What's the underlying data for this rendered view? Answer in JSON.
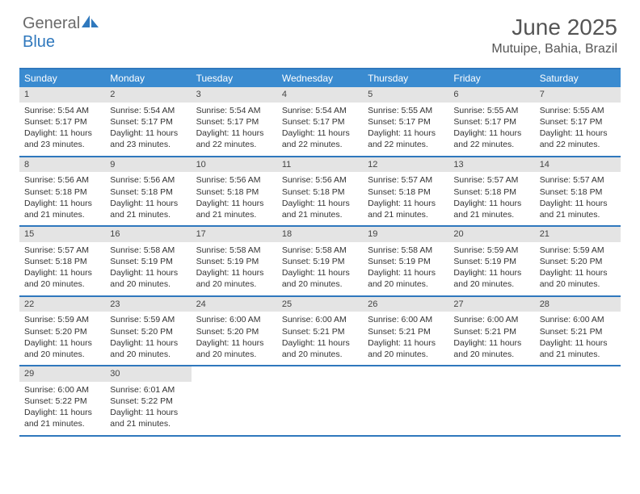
{
  "logo": {
    "part1": "General",
    "part2": "Blue"
  },
  "title": "June 2025",
  "location": "Mutuipe, Bahia, Brazil",
  "colors": {
    "accent": "#3a8bd0",
    "rule": "#2f78bd",
    "daynum_bg": "#e4e4e4",
    "text": "#333333",
    "header_text": "#555555",
    "background": "#ffffff"
  },
  "fonts": {
    "title_size": 28,
    "location_size": 16,
    "dow_size": 12,
    "cell_size": 10.5
  },
  "days_of_week": [
    "Sunday",
    "Monday",
    "Tuesday",
    "Wednesday",
    "Thursday",
    "Friday",
    "Saturday"
  ],
  "weeks": [
    [
      {
        "n": "1",
        "sunrise": "Sunrise: 5:54 AM",
        "sunset": "Sunset: 5:17 PM",
        "daylight": "Daylight: 11 hours and 23 minutes."
      },
      {
        "n": "2",
        "sunrise": "Sunrise: 5:54 AM",
        "sunset": "Sunset: 5:17 PM",
        "daylight": "Daylight: 11 hours and 23 minutes."
      },
      {
        "n": "3",
        "sunrise": "Sunrise: 5:54 AM",
        "sunset": "Sunset: 5:17 PM",
        "daylight": "Daylight: 11 hours and 22 minutes."
      },
      {
        "n": "4",
        "sunrise": "Sunrise: 5:54 AM",
        "sunset": "Sunset: 5:17 PM",
        "daylight": "Daylight: 11 hours and 22 minutes."
      },
      {
        "n": "5",
        "sunrise": "Sunrise: 5:55 AM",
        "sunset": "Sunset: 5:17 PM",
        "daylight": "Daylight: 11 hours and 22 minutes."
      },
      {
        "n": "6",
        "sunrise": "Sunrise: 5:55 AM",
        "sunset": "Sunset: 5:17 PM",
        "daylight": "Daylight: 11 hours and 22 minutes."
      },
      {
        "n": "7",
        "sunrise": "Sunrise: 5:55 AM",
        "sunset": "Sunset: 5:17 PM",
        "daylight": "Daylight: 11 hours and 22 minutes."
      }
    ],
    [
      {
        "n": "8",
        "sunrise": "Sunrise: 5:56 AM",
        "sunset": "Sunset: 5:18 PM",
        "daylight": "Daylight: 11 hours and 21 minutes."
      },
      {
        "n": "9",
        "sunrise": "Sunrise: 5:56 AM",
        "sunset": "Sunset: 5:18 PM",
        "daylight": "Daylight: 11 hours and 21 minutes."
      },
      {
        "n": "10",
        "sunrise": "Sunrise: 5:56 AM",
        "sunset": "Sunset: 5:18 PM",
        "daylight": "Daylight: 11 hours and 21 minutes."
      },
      {
        "n": "11",
        "sunrise": "Sunrise: 5:56 AM",
        "sunset": "Sunset: 5:18 PM",
        "daylight": "Daylight: 11 hours and 21 minutes."
      },
      {
        "n": "12",
        "sunrise": "Sunrise: 5:57 AM",
        "sunset": "Sunset: 5:18 PM",
        "daylight": "Daylight: 11 hours and 21 minutes."
      },
      {
        "n": "13",
        "sunrise": "Sunrise: 5:57 AM",
        "sunset": "Sunset: 5:18 PM",
        "daylight": "Daylight: 11 hours and 21 minutes."
      },
      {
        "n": "14",
        "sunrise": "Sunrise: 5:57 AM",
        "sunset": "Sunset: 5:18 PM",
        "daylight": "Daylight: 11 hours and 21 minutes."
      }
    ],
    [
      {
        "n": "15",
        "sunrise": "Sunrise: 5:57 AM",
        "sunset": "Sunset: 5:18 PM",
        "daylight": "Daylight: 11 hours and 20 minutes."
      },
      {
        "n": "16",
        "sunrise": "Sunrise: 5:58 AM",
        "sunset": "Sunset: 5:19 PM",
        "daylight": "Daylight: 11 hours and 20 minutes."
      },
      {
        "n": "17",
        "sunrise": "Sunrise: 5:58 AM",
        "sunset": "Sunset: 5:19 PM",
        "daylight": "Daylight: 11 hours and 20 minutes."
      },
      {
        "n": "18",
        "sunrise": "Sunrise: 5:58 AM",
        "sunset": "Sunset: 5:19 PM",
        "daylight": "Daylight: 11 hours and 20 minutes."
      },
      {
        "n": "19",
        "sunrise": "Sunrise: 5:58 AM",
        "sunset": "Sunset: 5:19 PM",
        "daylight": "Daylight: 11 hours and 20 minutes."
      },
      {
        "n": "20",
        "sunrise": "Sunrise: 5:59 AM",
        "sunset": "Sunset: 5:19 PM",
        "daylight": "Daylight: 11 hours and 20 minutes."
      },
      {
        "n": "21",
        "sunrise": "Sunrise: 5:59 AM",
        "sunset": "Sunset: 5:20 PM",
        "daylight": "Daylight: 11 hours and 20 minutes."
      }
    ],
    [
      {
        "n": "22",
        "sunrise": "Sunrise: 5:59 AM",
        "sunset": "Sunset: 5:20 PM",
        "daylight": "Daylight: 11 hours and 20 minutes."
      },
      {
        "n": "23",
        "sunrise": "Sunrise: 5:59 AM",
        "sunset": "Sunset: 5:20 PM",
        "daylight": "Daylight: 11 hours and 20 minutes."
      },
      {
        "n": "24",
        "sunrise": "Sunrise: 6:00 AM",
        "sunset": "Sunset: 5:20 PM",
        "daylight": "Daylight: 11 hours and 20 minutes."
      },
      {
        "n": "25",
        "sunrise": "Sunrise: 6:00 AM",
        "sunset": "Sunset: 5:21 PM",
        "daylight": "Daylight: 11 hours and 20 minutes."
      },
      {
        "n": "26",
        "sunrise": "Sunrise: 6:00 AM",
        "sunset": "Sunset: 5:21 PM",
        "daylight": "Daylight: 11 hours and 20 minutes."
      },
      {
        "n": "27",
        "sunrise": "Sunrise: 6:00 AM",
        "sunset": "Sunset: 5:21 PM",
        "daylight": "Daylight: 11 hours and 20 minutes."
      },
      {
        "n": "28",
        "sunrise": "Sunrise: 6:00 AM",
        "sunset": "Sunset: 5:21 PM",
        "daylight": "Daylight: 11 hours and 21 minutes."
      }
    ],
    [
      {
        "n": "29",
        "sunrise": "Sunrise: 6:00 AM",
        "sunset": "Sunset: 5:22 PM",
        "daylight": "Daylight: 11 hours and 21 minutes."
      },
      {
        "n": "30",
        "sunrise": "Sunrise: 6:01 AM",
        "sunset": "Sunset: 5:22 PM",
        "daylight": "Daylight: 11 hours and 21 minutes."
      },
      {
        "empty": true
      },
      {
        "empty": true
      },
      {
        "empty": true
      },
      {
        "empty": true
      },
      {
        "empty": true
      }
    ]
  ]
}
